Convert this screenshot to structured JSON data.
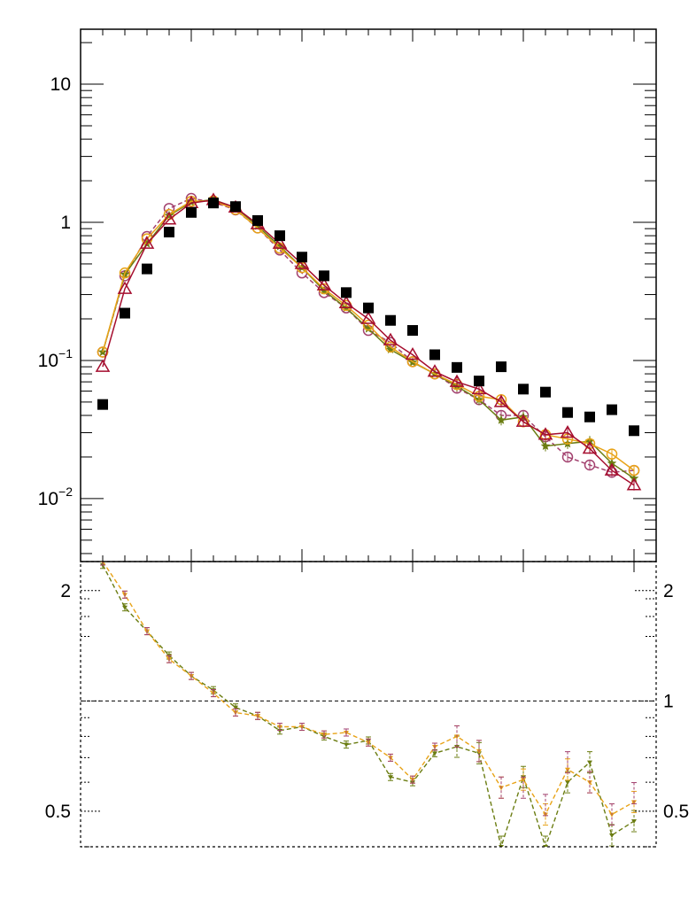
{
  "chart_data": [
    {
      "panel": "upper",
      "type": "line",
      "title": "",
      "xlabel": "",
      "ylabel": "",
      "yscale": "log",
      "ylim": [
        0.0035,
        25
      ],
      "xlim": [
        0,
        26
      ],
      "y_tick_labels": [
        {
          "value": 10,
          "base": "10",
          "exp": ""
        },
        {
          "value": 1,
          "base": "1",
          "exp": ""
        },
        {
          "value": 0.1,
          "base": "10",
          "exp": "−1"
        },
        {
          "value": 0.01,
          "base": "10",
          "exp": "−2"
        }
      ],
      "series": [
        {
          "id": "black-squares",
          "color": "#000000",
          "marker": "square",
          "line": "none",
          "x": [
            1,
            2,
            3,
            4,
            5,
            6,
            7,
            8,
            9,
            10,
            11,
            12,
            13,
            14,
            15,
            16,
            17,
            18,
            19,
            20,
            21,
            22,
            23,
            24,
            25
          ],
          "y": [
            0.048,
            0.22,
            0.46,
            0.85,
            1.18,
            1.38,
            1.3,
            1.03,
            0.8,
            0.56,
            0.41,
            0.31,
            0.24,
            0.195,
            0.165,
            0.11,
            0.089,
            0.071,
            0.09,
            0.062,
            0.059,
            0.042,
            0.039,
            0.044,
            0.031
          ]
        },
        {
          "id": "red-triangles",
          "color": "#a50d2e",
          "marker": "triangle",
          "line": "solid",
          "x": [
            1,
            2,
            3,
            4,
            5,
            6,
            7,
            8,
            9,
            10,
            11,
            12,
            13,
            14,
            15,
            16,
            17,
            18,
            19,
            20,
            21,
            22,
            23,
            24,
            25
          ],
          "y": [
            0.09,
            0.33,
            0.7,
            1.05,
            1.38,
            1.45,
            1.28,
            0.97,
            0.7,
            0.5,
            0.35,
            0.26,
            0.2,
            0.14,
            0.11,
            0.083,
            0.07,
            0.062,
            0.05,
            0.036,
            0.029,
            0.03,
            0.023,
            0.016,
            0.0125
          ]
        },
        {
          "id": "purple-circles",
          "color": "#a3426f",
          "marker": "circle",
          "line": "dashed",
          "x": [
            1,
            2,
            3,
            4,
            5,
            6,
            7,
            8,
            9,
            10,
            11,
            12,
            13,
            14,
            15,
            16,
            17,
            18,
            19,
            20,
            21,
            22,
            23,
            24,
            25
          ],
          "y": [
            0.115,
            0.41,
            0.79,
            1.26,
            1.49,
            1.4,
            1.23,
            0.91,
            0.63,
            0.43,
            0.31,
            0.24,
            0.165,
            0.135,
            0.098,
            0.08,
            0.063,
            0.052,
            0.04,
            0.04,
            0.028,
            0.02,
            0.0175,
            0.0155,
            0.016
          ]
        },
        {
          "id": "orange-circles",
          "color": "#e8a317",
          "marker": "circle",
          "line": "solid",
          "x": [
            1,
            2,
            3,
            4,
            5,
            6,
            7,
            8,
            9,
            10,
            11,
            12,
            13,
            14,
            15,
            16,
            17,
            18,
            19,
            20,
            21,
            22,
            23,
            24,
            25
          ],
          "y": [
            0.115,
            0.43,
            0.76,
            1.14,
            1.42,
            1.43,
            1.24,
            0.91,
            0.65,
            0.47,
            0.33,
            0.25,
            0.18,
            0.125,
            0.098,
            0.08,
            0.067,
            0.055,
            0.052,
            0.036,
            0.029,
            0.027,
            0.025,
            0.021,
            0.016
          ]
        },
        {
          "id": "olive-stars",
          "color": "#6b7d12",
          "marker": "star",
          "line": "solid",
          "x": [
            1,
            2,
            3,
            4,
            5,
            6,
            7,
            8,
            9,
            10,
            11,
            12,
            13,
            14,
            15,
            16,
            17,
            18,
            19,
            20,
            21,
            22,
            23,
            24,
            25
          ],
          "y": [
            0.115,
            0.42,
            0.7,
            1.12,
            1.4,
            1.46,
            1.28,
            0.94,
            0.67,
            0.47,
            0.32,
            0.24,
            0.17,
            0.12,
            0.097,
            0.08,
            0.065,
            0.052,
            0.037,
            0.039,
            0.024,
            0.025,
            0.026,
            0.018,
            0.014
          ]
        }
      ]
    },
    {
      "panel": "lower",
      "type": "line",
      "title": "",
      "xlabel": "",
      "ylabel": "",
      "yscale": "log",
      "ylim": [
        0.4,
        2.4
      ],
      "xlim": [
        0,
        26
      ],
      "y_tick_labels_left": [
        {
          "value": 2,
          "label": "2"
        },
        {
          "value": 0.5,
          "label": "0.5"
        }
      ],
      "y_tick_labels_right": [
        {
          "value": 2,
          "label": "2"
        },
        {
          "value": 1,
          "label": "1"
        },
        {
          "value": 0.5,
          "label": "0.5"
        }
      ],
      "reference_line": 1,
      "series": [
        {
          "id": "olive-ratio",
          "color": "#6b7d12",
          "line": "dashed",
          "x": [
            1,
            2,
            3,
            4,
            5,
            6,
            7,
            8,
            9,
            10,
            11,
            12,
            13,
            14,
            15,
            16,
            17,
            18,
            19,
            20,
            21,
            22,
            23,
            24,
            25
          ],
          "y": [
            2.35,
            1.8,
            1.55,
            1.33,
            1.17,
            1.07,
            0.96,
            0.91,
            0.83,
            0.85,
            0.8,
            0.76,
            0.78,
            0.62,
            0.6,
            0.72,
            0.75,
            0.72,
            0.4,
            0.62,
            0.4,
            0.6,
            0.68,
            0.43,
            0.47
          ]
        },
        {
          "id": "orange-ratio",
          "color": "#e8a317",
          "line": "dashed",
          "x": [
            1,
            2,
            3,
            4,
            5,
            6,
            7,
            8,
            9,
            10,
            11,
            12,
            13,
            14,
            15,
            16,
            17,
            18,
            19,
            20,
            21,
            22,
            23,
            24,
            25
          ],
          "y": [
            2.4,
            1.95,
            1.55,
            1.3,
            1.17,
            1.05,
            0.93,
            0.91,
            0.85,
            0.85,
            0.81,
            0.82,
            0.77,
            0.7,
            0.61,
            0.75,
            0.8,
            0.73,
            0.58,
            0.61,
            0.49,
            0.65,
            0.6,
            0.49,
            0.53
          ]
        },
        {
          "id": "purple-ratio",
          "color": "#a3426f",
          "line": "dashed",
          "x": [
            1,
            2,
            3,
            4,
            5,
            6,
            7,
            8,
            9,
            10,
            11,
            12,
            13,
            14,
            15,
            16,
            17,
            18,
            19,
            20,
            21,
            22,
            23,
            24,
            25
          ],
          "y": [
            2.4,
            1.95,
            1.55,
            1.3,
            1.17,
            1.05,
            0.93,
            0.91,
            0.85,
            0.85,
            0.81,
            0.82,
            0.77,
            0.7,
            0.61,
            0.75,
            0.8,
            0.73,
            0.58,
            0.58,
            0.52,
            0.68,
            0.6,
            0.49,
            0.56
          ]
        }
      ]
    }
  ]
}
